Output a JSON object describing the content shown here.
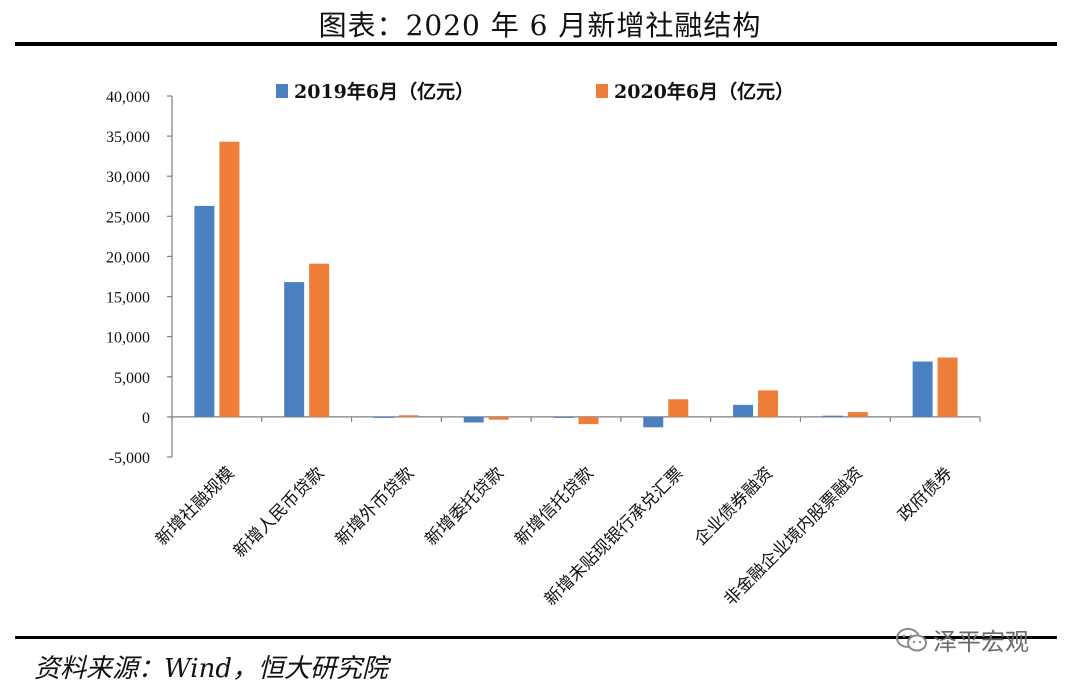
{
  "title": "图表：2020 年 6 月新增社融结构",
  "source": "资料来源：Wind，恒大研究院",
  "watermark": "泽平宏观",
  "colors": {
    "series_2019": "#4a7fc0",
    "series_2020": "#ee7d3a",
    "axis": "#7f7f7f"
  },
  "chart_data": {
    "type": "bar",
    "categories": [
      "新增社融规模",
      "新增人民币贷款",
      "新增外币贷款",
      "新增委托贷款",
      "新增信托贷款",
      "新增未贴现银行承兑汇票",
      "企业债券融资",
      "非金融企业境内股票融资",
      "政府债券"
    ],
    "series": [
      {
        "name": "2019年6月（亿元）",
        "values": [
          26300,
          16800,
          -10,
          -700,
          -50,
          -1300,
          1500,
          150,
          6900
        ]
      },
      {
        "name": "2020年6月（亿元）",
        "values": [
          34300,
          19100,
          200,
          -350,
          -900,
          2200,
          3300,
          600,
          7400
        ]
      }
    ],
    "yticks": [
      "40,000",
      "35,000",
      "30,000",
      "25,000",
      "20,000",
      "15,000",
      "10,000",
      "5,000",
      "0",
      "-5,000"
    ],
    "ylim": [
      -5000,
      40000
    ],
    "grid": false,
    "legend_position": "top"
  }
}
